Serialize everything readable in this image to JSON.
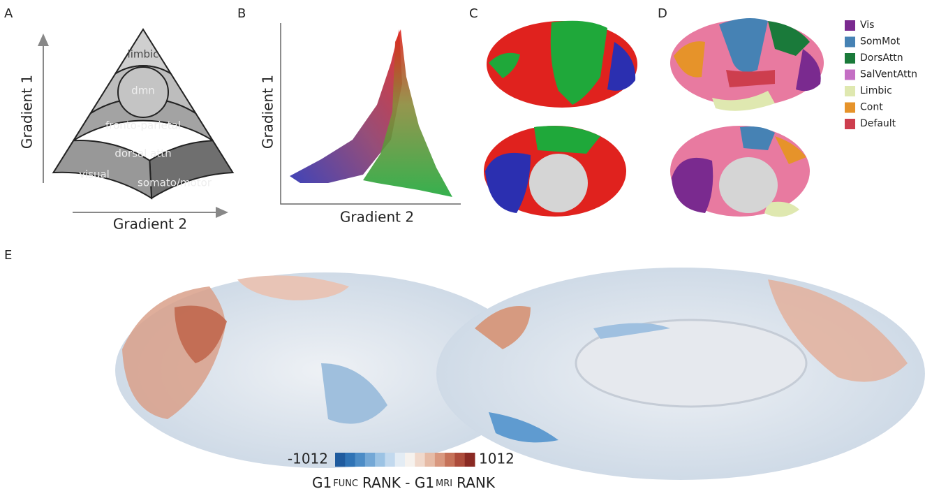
{
  "panel_a": {
    "label": "A",
    "regions": [
      "limbic",
      "dmn",
      "fronto-parietal",
      "dorsal attn",
      "visual",
      "somato/motor"
    ],
    "y_axis": "Gradient 1",
    "x_axis": "Gradient 2"
  },
  "panel_b": {
    "label": "B",
    "y_axis": "Gradient 1",
    "x_axis": "Gradient 2"
  },
  "panel_c": {
    "label": "C"
  },
  "panel_d": {
    "label": "D",
    "legend": [
      {
        "name": "Vis",
        "color": "#7a2a8f"
      },
      {
        "name": "SomMot",
        "color": "#4682b4"
      },
      {
        "name": "DorsAttn",
        "color": "#1a7a3a"
      },
      {
        "name": "SalVentAttn",
        "color": "#c46fc4"
      },
      {
        "name": "Limbic",
        "color": "#dfe8b0"
      },
      {
        "name": "Cont",
        "color": "#e6932a"
      },
      {
        "name": "Default",
        "color": "#cd3e4e"
      }
    ]
  },
  "panel_e": {
    "label": "E",
    "colorbar": {
      "min": -1012,
      "max": 1012
    },
    "colorbar_label": [
      "G1",
      "FUNC",
      "RANK - G1",
      "MRI",
      "RANK"
    ]
  }
}
